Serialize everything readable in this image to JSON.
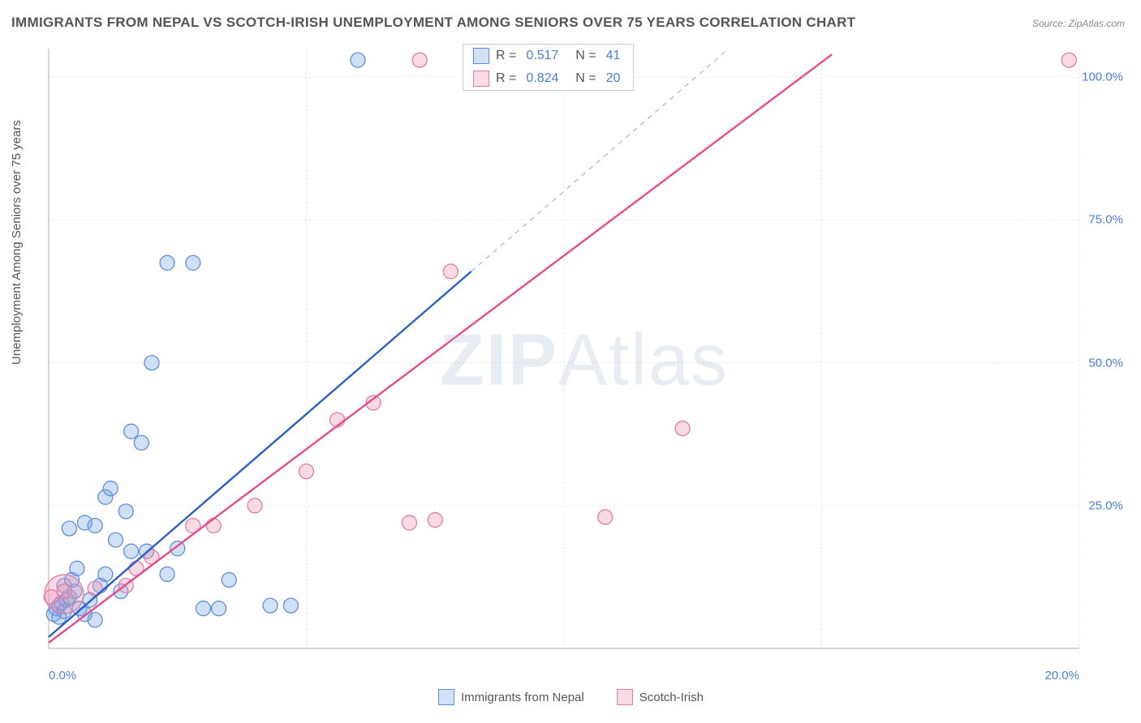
{
  "title": "IMMIGRANTS FROM NEPAL VS SCOTCH-IRISH UNEMPLOYMENT AMONG SENIORS OVER 75 YEARS CORRELATION CHART",
  "source": "Source: ZipAtlas.com",
  "ylabel": "Unemployment Among Seniors over 75 years",
  "watermark_a": "ZIP",
  "watermark_b": "Atlas",
  "chart": {
    "type": "scatter",
    "background_color": "#ffffff",
    "grid_color": "#e3e3e3",
    "axis_color": "#bdbdbd",
    "xlim": [
      0,
      20
    ],
    "ylim": [
      0,
      105
    ],
    "ytick_step": 25,
    "xticks": [
      0,
      5,
      10,
      15,
      20
    ],
    "yticks": [
      25,
      50,
      75,
      100
    ],
    "ytick_labels": [
      "25.0%",
      "50.0%",
      "75.0%",
      "100.0%"
    ],
    "xtick_labels": [
      "0.0%",
      "",
      "",
      "",
      "20.0%"
    ],
    "ytick_color": "#4a7fd8",
    "xtick_color": "#4a7fd8",
    "marker_radius": 9,
    "marker_stroke_width": 1.3,
    "trend_line_width": 2.4,
    "dashed_line_color": "#9bb8e8",
    "series": [
      {
        "name": "Immigrants from Nepal",
        "fill": "rgba(120,165,230,0.35)",
        "stroke": "#5e8fd8",
        "label_color": "#555555",
        "r_value": "0.517",
        "n_value": "41",
        "trend_color": "#2e5fc4",
        "trend_from": [
          0,
          2
        ],
        "trend_to": [
          8.2,
          66
        ],
        "points": [
          [
            0.1,
            6
          ],
          [
            0.15,
            7
          ],
          [
            0.2,
            7.5
          ],
          [
            0.25,
            8
          ],
          [
            0.3,
            6.5
          ],
          [
            0.35,
            8.5
          ],
          [
            0.4,
            9
          ],
          [
            0.3,
            11
          ],
          [
            0.5,
            10
          ],
          [
            0.6,
            7
          ],
          [
            0.7,
            6
          ],
          [
            0.8,
            8.5
          ],
          [
            0.9,
            5
          ],
          [
            0.7,
            22
          ],
          [
            0.4,
            21
          ],
          [
            0.9,
            21.5
          ],
          [
            1.1,
            13
          ],
          [
            1.3,
            19
          ],
          [
            1.5,
            24
          ],
          [
            1.1,
            26.5
          ],
          [
            1.6,
            17
          ],
          [
            1.9,
            17
          ],
          [
            2.3,
            13
          ],
          [
            2.5,
            17.5
          ],
          [
            1.8,
            36
          ],
          [
            1.6,
            38
          ],
          [
            2.0,
            50
          ],
          [
            1.2,
            28
          ],
          [
            2.3,
            67.5
          ],
          [
            2.8,
            67.5
          ],
          [
            3.0,
            7
          ],
          [
            3.3,
            7
          ],
          [
            3.5,
            12
          ],
          [
            4.3,
            7.5
          ],
          [
            4.7,
            7.5
          ],
          [
            6.0,
            103
          ],
          [
            0.45,
            12
          ],
          [
            0.55,
            14
          ],
          [
            1.0,
            11
          ],
          [
            1.4,
            10
          ],
          [
            0.2,
            5.5
          ]
        ]
      },
      {
        "name": "Scotch-Irish",
        "fill": "rgba(240,150,180,0.35)",
        "stroke": "#e37ba2",
        "label_color": "#555555",
        "r_value": "0.824",
        "n_value": "20",
        "trend_color": "#e84a8f",
        "trend_from": [
          0,
          1
        ],
        "trend_to": [
          15.2,
          104
        ],
        "points": [
          [
            0.05,
            9
          ],
          [
            0.3,
            10
          ],
          [
            0.9,
            10.5
          ],
          [
            1.5,
            11
          ],
          [
            1.7,
            14
          ],
          [
            2.0,
            16
          ],
          [
            2.8,
            21.5
          ],
          [
            3.2,
            21.5
          ],
          [
            4.0,
            25
          ],
          [
            5.0,
            31
          ],
          [
            5.6,
            40
          ],
          [
            6.3,
            43
          ],
          [
            7.0,
            22
          ],
          [
            7.5,
            22.5
          ],
          [
            7.8,
            66
          ],
          [
            10.8,
            23
          ],
          [
            12.3,
            38.5
          ],
          [
            7.2,
            103
          ],
          [
            10.1,
            103
          ],
          [
            19.8,
            103
          ]
        ],
        "big_point": {
          "x": 0.3,
          "y": 9.5,
          "r": 24
        }
      }
    ]
  },
  "legend_top": {
    "rows": [
      {
        "series": 0,
        "r_label": "R =",
        "n_label": "N ="
      },
      {
        "series": 1,
        "r_label": "R =",
        "n_label": "N ="
      }
    ]
  },
  "legend_bottom": {
    "items": [
      {
        "series": 0
      },
      {
        "series": 1
      }
    ]
  }
}
